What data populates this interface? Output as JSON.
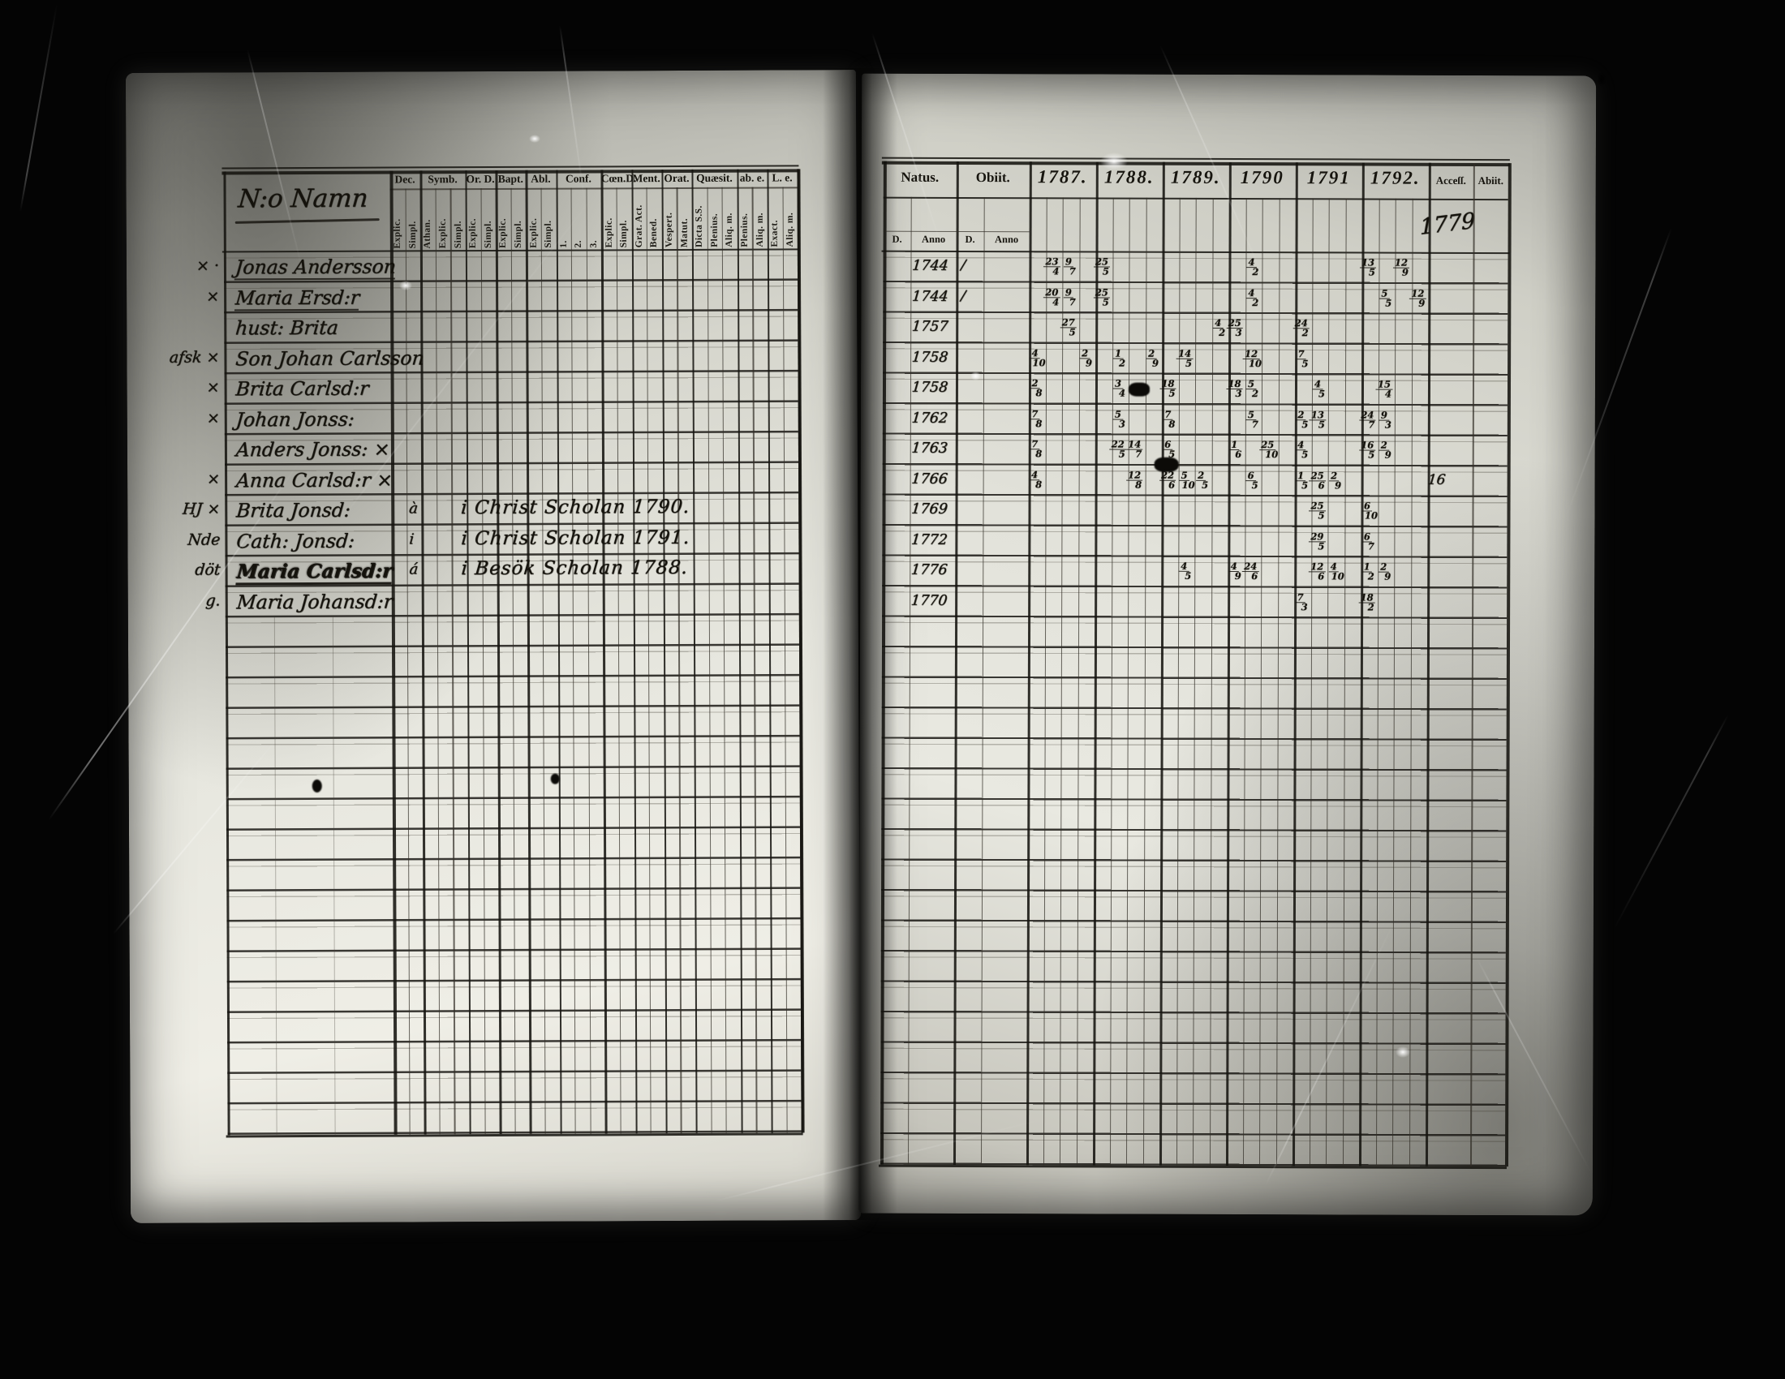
{
  "colors": {
    "ink": "#14120c",
    "paper_light": "#e9e8e0",
    "background": "#040404"
  },
  "left_page": {
    "title": "N:o Namn",
    "column_groups": [
      {
        "label": "Dec.",
        "subs": [
          "Explic.",
          "Simpl."
        ]
      },
      {
        "label": "Symb.",
        "subs": [
          "Athan.",
          "Explic.",
          "Simpl."
        ]
      },
      {
        "label": "Or. D.",
        "subs": [
          "Explic.",
          "Simpl."
        ]
      },
      {
        "label": "Bapt.",
        "subs": [
          "Explic.",
          "Simpl."
        ]
      },
      {
        "label": "Abl.",
        "subs": [
          "Explic.",
          "Simpl."
        ]
      },
      {
        "label": "Conf.",
        "subs": [
          "1.",
          "2.",
          "3."
        ]
      },
      {
        "label": "Cœn.D.",
        "subs": [
          "Explic.",
          "Simpl."
        ]
      },
      {
        "label": "Ment.",
        "subs": [
          "Grat. Act.",
          "Bened."
        ]
      },
      {
        "label": "Orat.",
        "subs": [
          "Vespert.",
          "Matut."
        ]
      },
      {
        "label": "Quæsit.",
        "subs": [
          "Dicta S.S.",
          "Plenius.",
          "Aliq. m."
        ]
      },
      {
        "label": "ab. e.",
        "subs": [
          "Plenius.",
          "Aliq. m."
        ]
      },
      {
        "label": "L. e.",
        "subs": [
          "Exact.",
          "Aliq. m."
        ]
      }
    ],
    "rows": [
      {
        "margin": "× ·",
        "name": "Jonas Andersson",
        "underline": true
      },
      {
        "margin": "×",
        "name": "Maria Ersd:r",
        "underline": true
      },
      {
        "margin": "",
        "name": "hust: Brita"
      },
      {
        "margin": "afsk ×",
        "name": "Son Johan Carlsson"
      },
      {
        "margin": "×",
        "name": "Brita Carlsd:r"
      },
      {
        "margin": "×",
        "name": "Johan Jonss:"
      },
      {
        "margin": "",
        "name": "Anders Jonss: ×"
      },
      {
        "margin": "×",
        "name": "Anna Carlsd:r ×"
      },
      {
        "margin": "HJ ×",
        "name": "Brita Jonsd:",
        "note_prefix": "à",
        "note": "i Christ Scholan 1790."
      },
      {
        "margin": "Nde",
        "name": "Cath: Jonsd:",
        "note_prefix": "i",
        "note": "i Christ Scholan 1791."
      },
      {
        "margin": "döt",
        "name": "Maria Carlsd:r",
        "note_prefix": "á",
        "note": "i Besök Scholan 1788.",
        "heavy": true
      },
      {
        "margin": "g.",
        "name": "Maria Johansd:r"
      }
    ]
  },
  "right_page": {
    "natus_label": "Natus.",
    "obiit_label": "Obiit.",
    "d_label": "D.",
    "anno_label": "Anno",
    "years": [
      "1787.",
      "1788.",
      "1789.",
      "1790",
      "1791",
      "1792."
    ],
    "accessit_label": "Acceſſ.",
    "abiit_label": "Abiit.",
    "accessit_note": "1779",
    "rows": [
      {
        "natus": "1744",
        "obiit_mark": "∕",
        "marks": [
          [
            0,
            1,
            "23/4"
          ],
          [
            0,
            2,
            "9/7"
          ],
          [
            1,
            0,
            "25/5"
          ],
          [
            3,
            1,
            "4/2"
          ],
          [
            5,
            0,
            "13/5"
          ],
          [
            5,
            2,
            "12/9"
          ]
        ]
      },
      {
        "natus": "1744",
        "obiit_mark": "∕",
        "marks": [
          [
            0,
            1,
            "20/4"
          ],
          [
            0,
            2,
            "9/7"
          ],
          [
            1,
            0,
            "25/5"
          ],
          [
            3,
            1,
            "4/2"
          ],
          [
            5,
            1,
            "5/5"
          ],
          [
            5,
            3,
            "12/9"
          ]
        ]
      },
      {
        "natus": "1757",
        "marks": [
          [
            0,
            2,
            "27/5"
          ],
          [
            2,
            3,
            "4/2"
          ],
          [
            3,
            0,
            "25/3"
          ],
          [
            4,
            0,
            "24/2"
          ]
        ]
      },
      {
        "natus": "1758",
        "marks": [
          [
            0,
            0,
            "4/10"
          ],
          [
            0,
            3,
            "2/9"
          ],
          [
            1,
            1,
            "1/2"
          ],
          [
            1,
            3,
            "2/9"
          ],
          [
            2,
            1,
            "14/5"
          ],
          [
            3,
            1,
            "12/10"
          ],
          [
            4,
            0,
            "7/5"
          ]
        ]
      },
      {
        "natus": "1758",
        "marks": [
          [
            0,
            0,
            "2/8"
          ],
          [
            1,
            1,
            "3/4"
          ],
          [
            2,
            0,
            "18/5"
          ],
          [
            3,
            0,
            "18/3"
          ],
          [
            3,
            1,
            "5/2"
          ],
          [
            4,
            1,
            "4/5"
          ],
          [
            5,
            1,
            "15/4"
          ]
        ]
      },
      {
        "natus": "1762",
        "marks": [
          [
            0,
            0,
            "7/8"
          ],
          [
            1,
            1,
            "5/3"
          ],
          [
            2,
            0,
            "7/8"
          ],
          [
            3,
            1,
            "5/7"
          ],
          [
            4,
            0,
            "2/5"
          ],
          [
            4,
            1,
            "13/5"
          ],
          [
            5,
            0,
            "24/7"
          ],
          [
            5,
            1,
            "9/3"
          ]
        ]
      },
      {
        "natus": "1763",
        "marks": [
          [
            0,
            0,
            "7/8"
          ],
          [
            1,
            1,
            "22/5"
          ],
          [
            1,
            2,
            "14/7"
          ],
          [
            2,
            0,
            "6/5"
          ],
          [
            3,
            0,
            "1/6"
          ],
          [
            3,
            2,
            "25/10"
          ],
          [
            4,
            0,
            "4/5"
          ],
          [
            5,
            0,
            "16/5"
          ],
          [
            5,
            1,
            "2/9"
          ]
        ]
      },
      {
        "natus": "1766",
        "accessit": "16",
        "marks": [
          [
            0,
            0,
            "4/8"
          ],
          [
            1,
            2,
            "12/8"
          ],
          [
            2,
            0,
            "22/6"
          ],
          [
            2,
            1,
            "5/10"
          ],
          [
            2,
            2,
            "2/5"
          ],
          [
            3,
            1,
            "6/5"
          ],
          [
            4,
            0,
            "1/5"
          ],
          [
            4,
            1,
            "25/6"
          ],
          [
            4,
            2,
            "2/9"
          ]
        ]
      },
      {
        "natus": "1769",
        "marks": [
          [
            4,
            1,
            "25/5"
          ],
          [
            5,
            0,
            "6/10"
          ]
        ]
      },
      {
        "natus": "1772",
        "marks": [
          [
            4,
            1,
            "29/5"
          ],
          [
            5,
            0,
            "6/7"
          ]
        ]
      },
      {
        "natus": "1776",
        "marks": [
          [
            2,
            1,
            "4/5"
          ],
          [
            3,
            0,
            "4/9"
          ],
          [
            3,
            1,
            "24/6"
          ],
          [
            4,
            1,
            "12/6"
          ],
          [
            4,
            2,
            "4/10"
          ],
          [
            5,
            0,
            "1/2"
          ],
          [
            5,
            1,
            "2/9"
          ]
        ]
      },
      {
        "natus": "1770",
        "marks": [
          [
            4,
            0,
            "7/3"
          ],
          [
            5,
            0,
            "18/2"
          ]
        ]
      }
    ]
  }
}
